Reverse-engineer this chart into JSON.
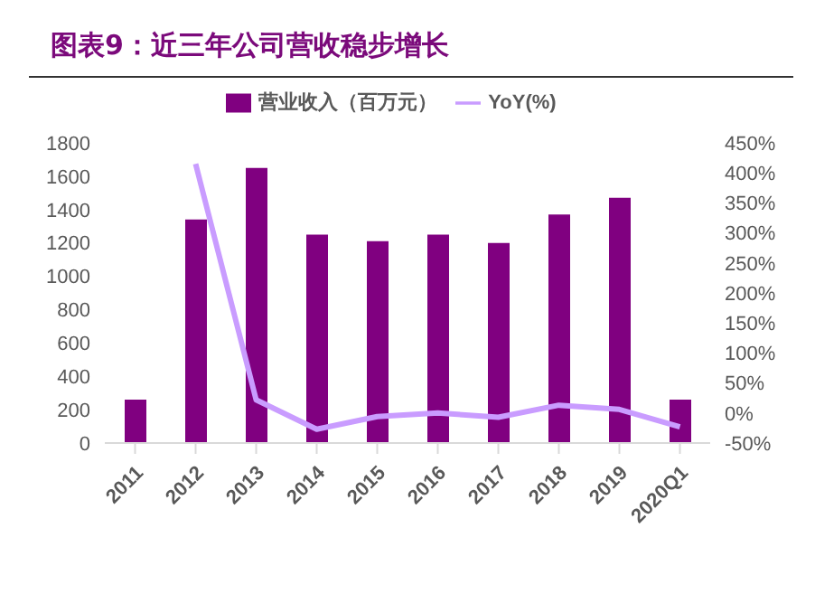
{
  "chart_data": {
    "type": "bar",
    "title": "图表9：近三年公司营收稳步增长",
    "categories": [
      "2011",
      "2012",
      "2013",
      "2014",
      "2015",
      "2016",
      "2017",
      "2018",
      "2019",
      "2020Q1"
    ],
    "series": [
      {
        "name": "营业收入（百万元）",
        "color": "#800080",
        "values": [
          260,
          1340,
          1650,
          1250,
          1210,
          1250,
          1200,
          1370,
          1470,
          260
        ]
      },
      {
        "name": "YoY(%)",
        "type": "line",
        "axis": "y2",
        "color": "#c99cff",
        "values": [
          null,
          415,
          22,
          -27,
          -6,
          0,
          -7,
          13,
          6,
          -23
        ]
      }
    ],
    "ylim": [
      0,
      1800
    ],
    "yticks": [
      0,
      200,
      400,
      600,
      800,
      1000,
      1200,
      1400,
      1600,
      1800
    ],
    "y2lim": [
      -50,
      450
    ],
    "y2ticks": [
      {
        "value": -50,
        "label": "-50%"
      },
      {
        "value": 0,
        "label": "0%"
      },
      {
        "value": 50,
        "label": "50%"
      },
      {
        "value": 100,
        "label": "100%"
      },
      {
        "value": 150,
        "label": "150%"
      },
      {
        "value": 200,
        "label": "200%"
      },
      {
        "value": 250,
        "label": "250%"
      },
      {
        "value": 300,
        "label": "300%"
      },
      {
        "value": 350,
        "label": "350%"
      },
      {
        "value": 400,
        "label": "400%"
      },
      {
        "value": 450,
        "label": "450%"
      }
    ],
    "legend": "top",
    "marker": "none"
  }
}
